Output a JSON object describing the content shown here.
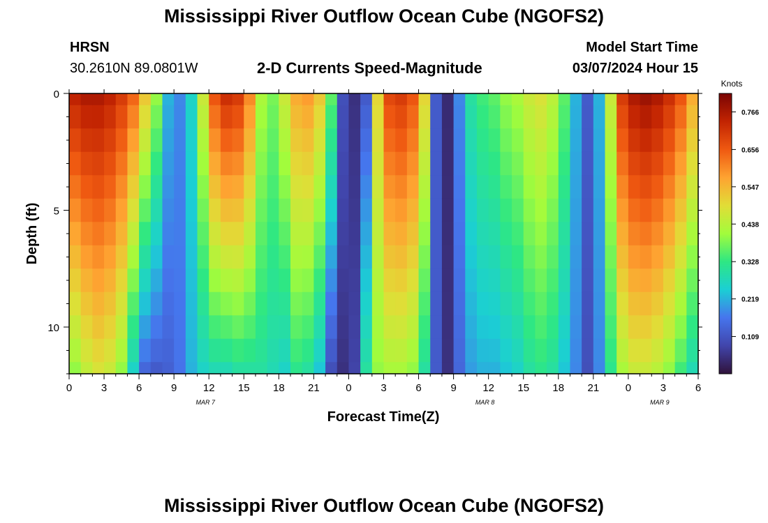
{
  "header": {
    "title": "Mississippi River Outflow Ocean Cube (NGOFS2)",
    "station_code": "HRSN",
    "coordinates": "30.2610N  89.0801W",
    "subtitle": "2-D Currents Speed-Magnitude",
    "model_start_label": "Model Start Time",
    "model_start_value": "03/07/2024 Hour 15"
  },
  "footer": {
    "title": "Mississippi River Outflow Ocean Cube (NGOFS2)"
  },
  "chart_data": {
    "type": "heatmap",
    "title": "2-D Currents Speed-Magnitude",
    "xlabel": "Forecast Time(Z)",
    "ylabel": "Depth (ft)",
    "x_range_hours": [
      0,
      54
    ],
    "x_tick_labels": [
      "0",
      "3",
      "6",
      "9",
      "12",
      "15",
      "18",
      "21",
      "0",
      "3",
      "6",
      "9",
      "12",
      "15",
      "18",
      "21",
      "0",
      "3",
      "6"
    ],
    "date_labels": [
      {
        "text": "MAR 7",
        "hour": 12
      },
      {
        "text": "MAR 8",
        "hour": 36
      },
      {
        "text": "MAR 9",
        "hour": 51
      }
    ],
    "ylim": [
      0,
      12
    ],
    "y_tick_labels": [
      "0",
      "5",
      "10"
    ],
    "y_tick_values": [
      0,
      5,
      10
    ],
    "colorbar": {
      "unit": "Knots",
      "min": 0.0,
      "max": 0.82,
      "tick_values": [
        0.766,
        0.656,
        0.547,
        0.438,
        0.328,
        0.219,
        0.109
      ],
      "tick_labels": [
        "0.766",
        "0.656",
        "0.547",
        "0.438",
        "0.328",
        "0.219",
        "0.109"
      ]
    },
    "depth_levels": [
      0,
      1,
      2,
      3,
      4,
      5,
      6,
      7,
      8,
      9,
      10,
      11,
      12
    ],
    "surface_speed_by_hour": [
      0.74,
      0.76,
      0.76,
      0.74,
      0.7,
      0.64,
      0.52,
      0.4,
      0.22,
      0.18,
      0.26,
      0.46,
      0.66,
      0.72,
      0.7,
      0.6,
      0.42,
      0.38,
      0.46,
      0.56,
      0.58,
      0.52,
      0.36,
      0.1,
      0.05,
      0.12,
      0.5,
      0.68,
      0.7,
      0.66,
      0.5,
      0.12,
      0.04,
      0.18,
      0.3,
      0.34,
      0.36,
      0.4,
      0.42,
      0.46,
      0.48,
      0.44,
      0.36,
      0.22,
      0.12,
      0.22,
      0.46,
      0.7,
      0.76,
      0.78,
      0.76,
      0.72,
      0.66,
      0.56
    ],
    "bottom_speed_by_hour": [
      0.4,
      0.45,
      0.48,
      0.46,
      0.4,
      0.26,
      0.14,
      0.12,
      0.13,
      0.16,
      0.22,
      0.26,
      0.28,
      0.28,
      0.3,
      0.3,
      0.3,
      0.28,
      0.26,
      0.32,
      0.3,
      0.24,
      0.1,
      0.05,
      0.08,
      0.3,
      0.4,
      0.42,
      0.42,
      0.4,
      0.3,
      0.12,
      0.05,
      0.14,
      0.2,
      0.22,
      0.22,
      0.24,
      0.26,
      0.3,
      0.32,
      0.3,
      0.24,
      0.18,
      0.1,
      0.18,
      0.32,
      0.42,
      0.46,
      0.46,
      0.44,
      0.4,
      0.34,
      0.28
    ]
  }
}
